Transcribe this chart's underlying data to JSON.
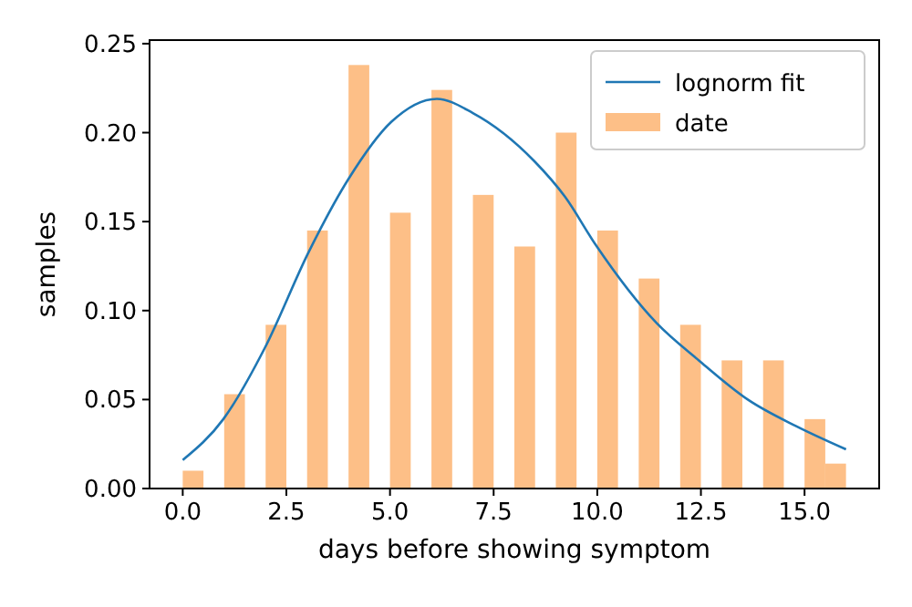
{
  "chart_data": {
    "type": "bar",
    "xlabel": "days before showing symptom",
    "ylabel": "samples",
    "xlim": [
      -0.8,
      16.8
    ],
    "ylim": [
      0,
      0.252
    ],
    "xticks": [
      {
        "value": 0,
        "label": "0.0"
      },
      {
        "value": 2.5,
        "label": "2.5"
      },
      {
        "value": 5,
        "label": "5.0"
      },
      {
        "value": 7.5,
        "label": "7.5"
      },
      {
        "value": 10,
        "label": "10.0"
      },
      {
        "value": 12.5,
        "label": "12.5"
      },
      {
        "value": 15,
        "label": "15.0"
      }
    ],
    "yticks": [
      {
        "value": 0,
        "label": "0.00"
      },
      {
        "value": 0.05,
        "label": "0.05"
      },
      {
        "value": 0.1,
        "label": "0.10"
      },
      {
        "value": 0.15,
        "label": "0.15"
      },
      {
        "value": 0.2,
        "label": "0.20"
      },
      {
        "value": 0.25,
        "label": "0.25"
      }
    ],
    "legend": "top right",
    "grid": false,
    "series": [
      {
        "name": "lognorm fit",
        "type": "line",
        "color": "#1f77b4",
        "x": [
          0,
          0.98,
          1.98,
          3.04,
          4,
          5.03,
          6.13,
          7,
          8.48,
          9.22,
          9.96,
          11.43,
          12.45,
          13.63,
          14.8,
          16
        ],
        "values": [
          0.016,
          0.039,
          0.079,
          0.133,
          0.174,
          0.206,
          0.219,
          0.211,
          0.184,
          0.164,
          0.137,
          0.093,
          0.072,
          0.05,
          0.035,
          0.022
        ]
      },
      {
        "name": "date",
        "color": "#fdbf87",
        "x": [
          0.25,
          1.25,
          2.25,
          3.25,
          4.25,
          5.25,
          6.25,
          7.25,
          8.25,
          9.25,
          10.25,
          11.25,
          12.25,
          13.25,
          14.25,
          15.25,
          15.75
        ],
        "values": [
          0.01,
          0.053,
          0.092,
          0.145,
          0.238,
          0.155,
          0.224,
          0.165,
          0.136,
          0.2,
          0.145,
          0.118,
          0.092,
          0.072,
          0.072,
          0.039,
          0.014
        ]
      }
    ]
  }
}
